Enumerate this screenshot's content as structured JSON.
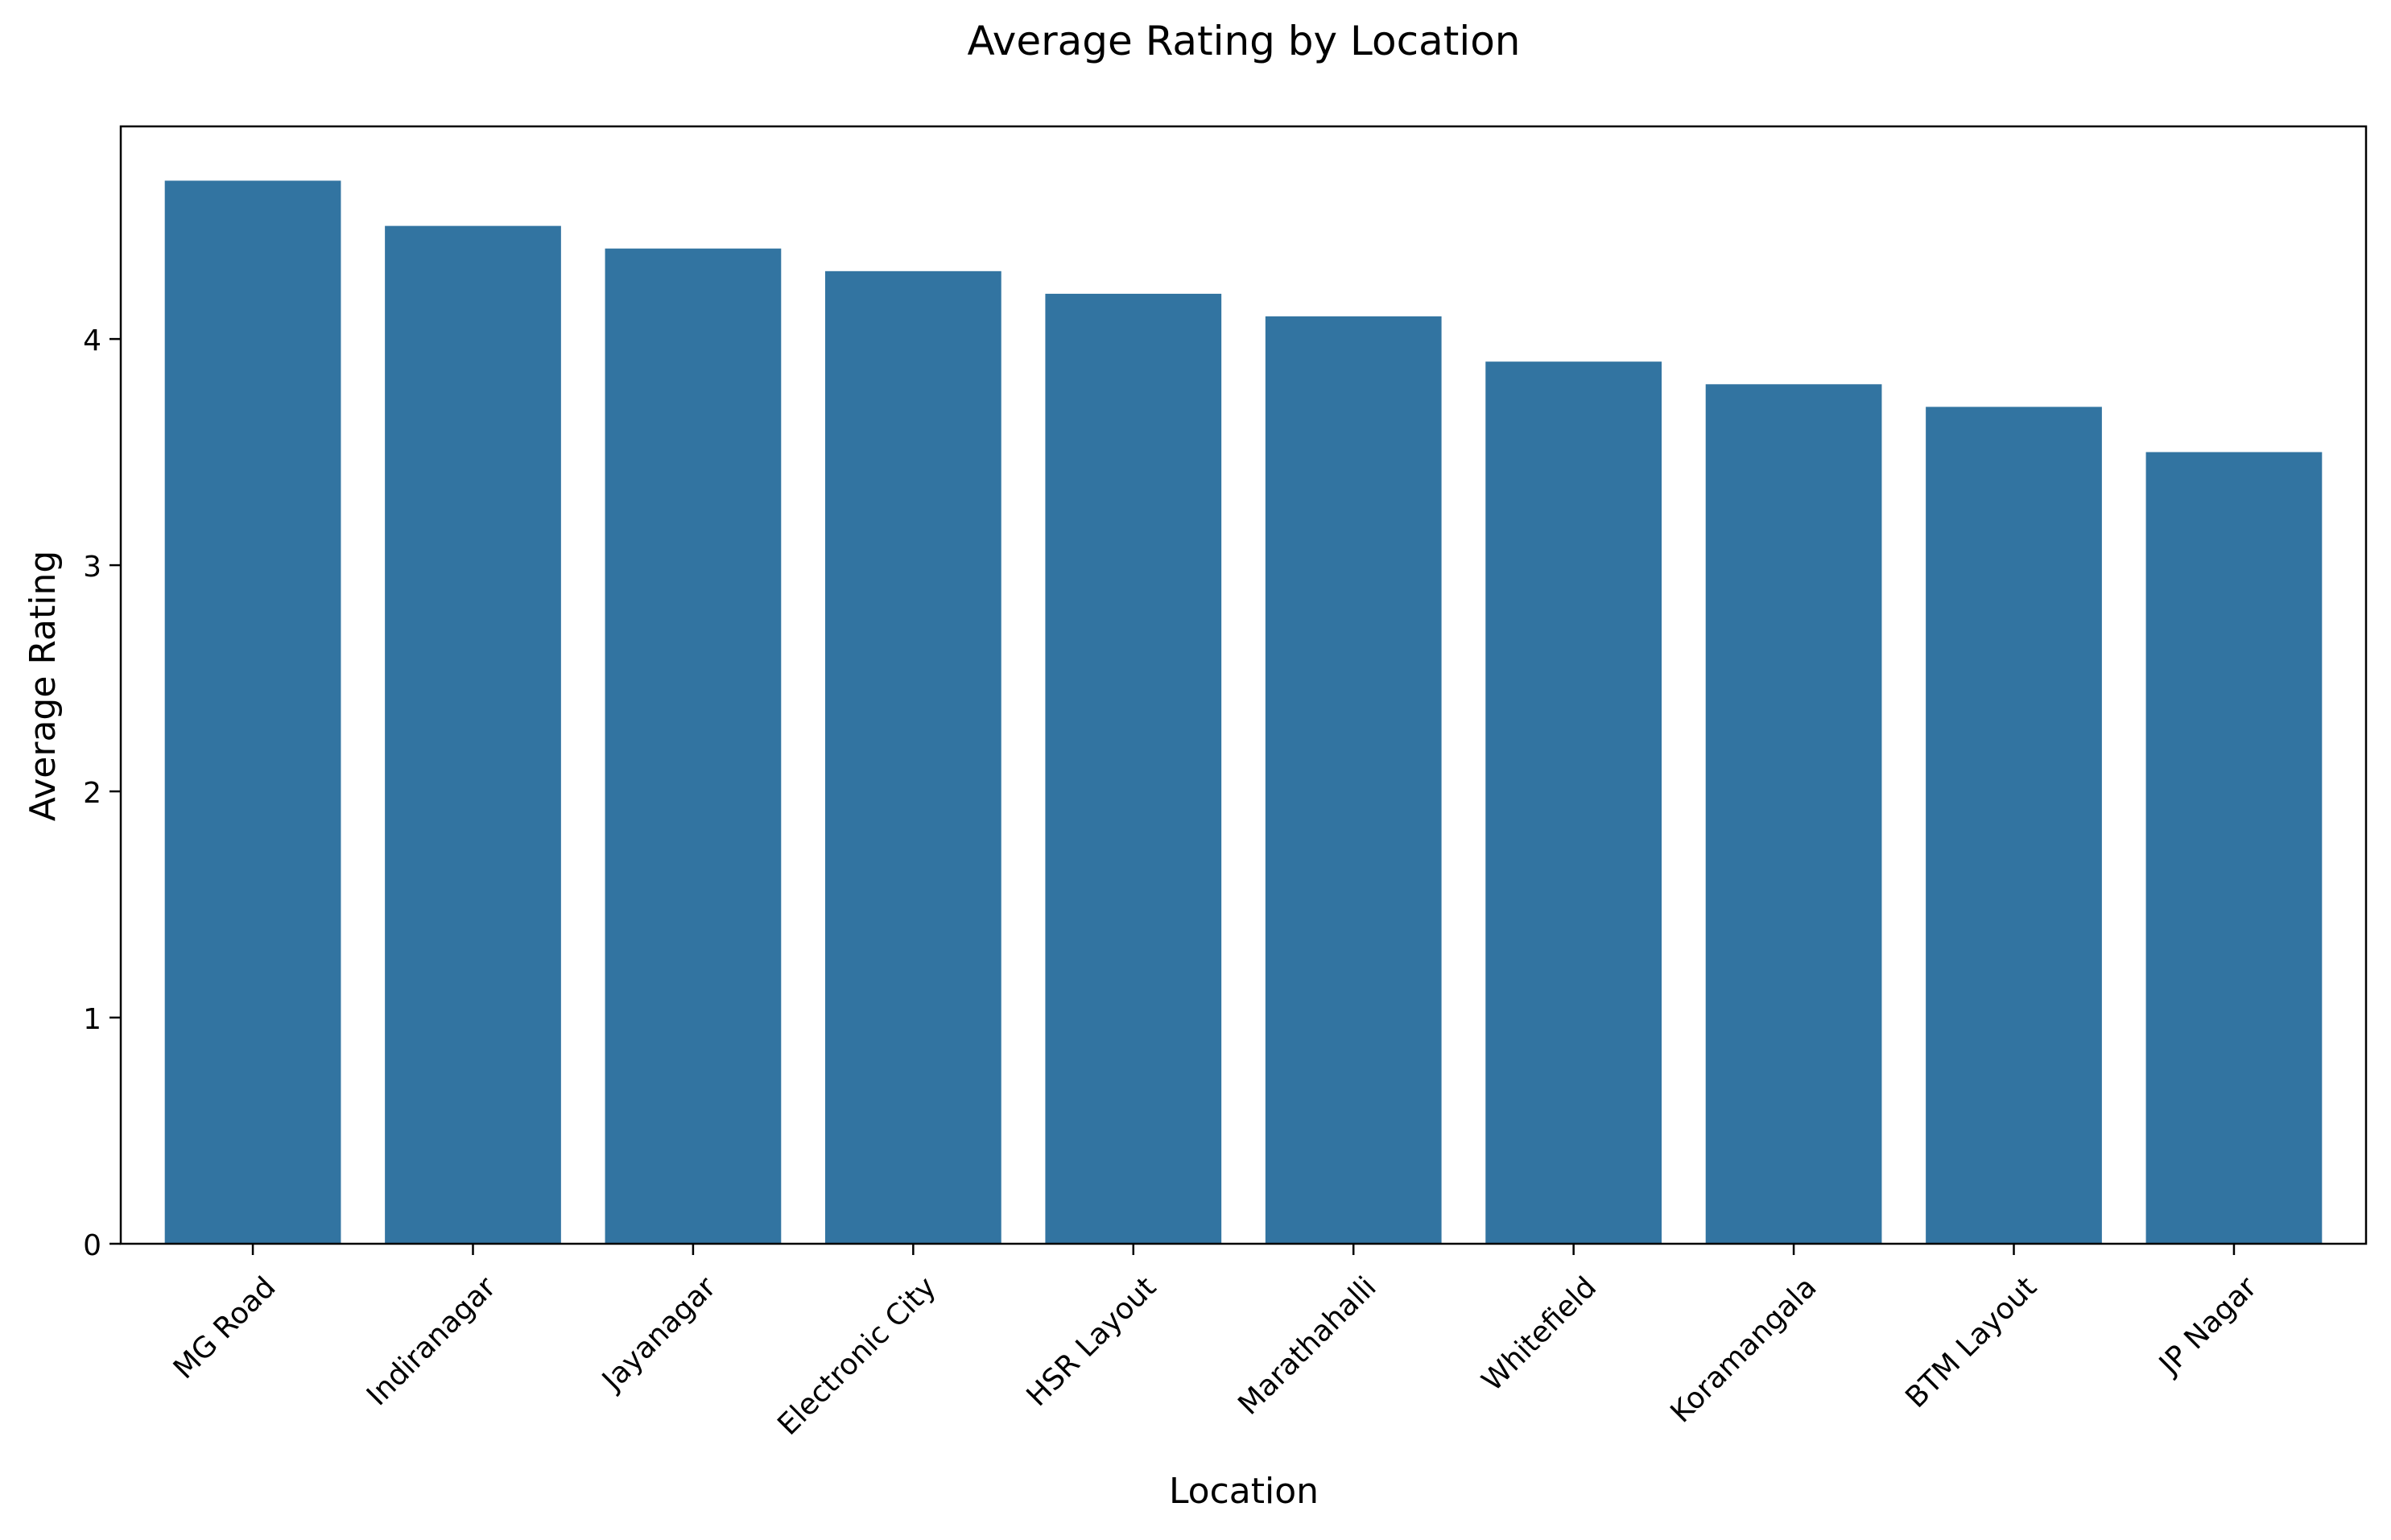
{
  "chart_data": {
    "type": "bar",
    "title": "Average Rating by Location",
    "xlabel": "Location",
    "ylabel": "Average Rating",
    "categories": [
      "MG Road",
      "Indiranagar",
      "Jayanagar",
      "Electronic City",
      "HSR Layout",
      "Marathahalli",
      "Whitefield",
      "Koramangala",
      "BTM Layout",
      "JP Nagar"
    ],
    "values": [
      4.7,
      4.5,
      4.4,
      4.3,
      4.2,
      4.1,
      3.9,
      3.8,
      3.7,
      3.5
    ],
    "ylim": [
      0,
      4.94
    ],
    "yticks": [
      0,
      1,
      2,
      3,
      4
    ],
    "grid": false,
    "legend": "none",
    "bar_color": "#3274a1"
  }
}
